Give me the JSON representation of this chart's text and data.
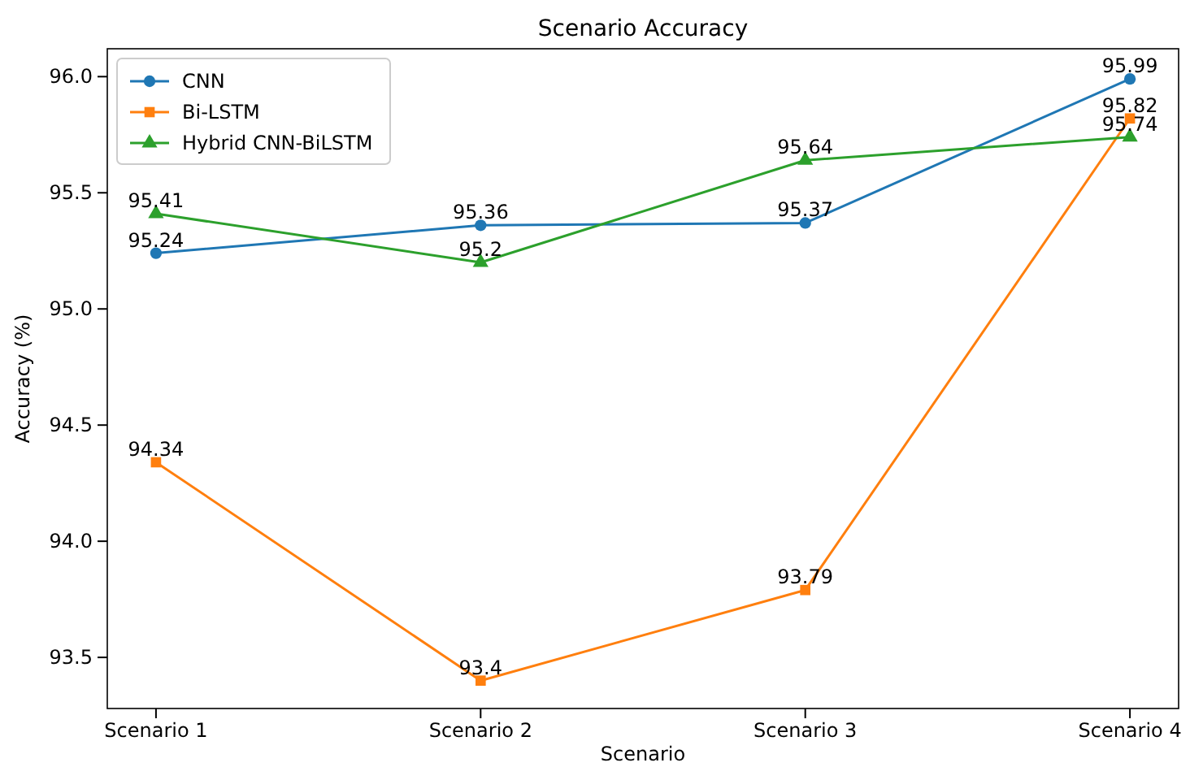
{
  "chart_data": {
    "type": "line",
    "title": "Scenario Accuracy",
    "xlabel": "Scenario",
    "ylabel": "Accuracy (%)",
    "categories": [
      "Scenario 1",
      "Scenario 2",
      "Scenario 3",
      "Scenario 4"
    ],
    "series": [
      {
        "name": "CNN",
        "color": "#1f77b4",
        "marker": "circle",
        "values": [
          95.24,
          95.36,
          95.37,
          95.99
        ]
      },
      {
        "name": "Bi-LSTM",
        "color": "#ff7f0e",
        "marker": "square",
        "values": [
          94.34,
          93.4,
          93.79,
          95.82
        ]
      },
      {
        "name": "Hybrid CNN-BiLSTM",
        "color": "#2ca02c",
        "marker": "triangle",
        "values": [
          95.41,
          95.2,
          95.64,
          95.74
        ]
      }
    ],
    "ylim": [
      93.28,
      96.12
    ],
    "yticks": [
      {
        "value": 93.5,
        "label": "93.5"
      },
      {
        "value": 94,
        "label": "94.0"
      },
      {
        "value": 94.5,
        "label": "94.5"
      },
      {
        "value": 95,
        "label": "95.0"
      },
      {
        "value": 95.5,
        "label": "95.5"
      },
      {
        "value": 96,
        "label": "96.0"
      }
    ],
    "data_labels": true,
    "legend": "top left",
    "grid": false
  }
}
